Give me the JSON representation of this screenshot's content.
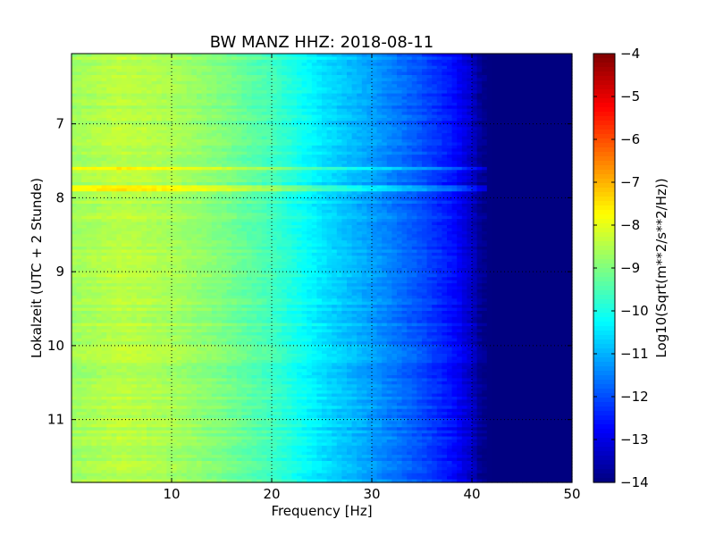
{
  "chart_data": {
    "type": "heatmap",
    "title": "BW MANZ HHZ: 2018-08-11",
    "xlabel": "Frequency [Hz]",
    "ylabel": "Lokalzeit (UTC + 2 Stunde)",
    "colorbar_label": "Log10(Sqrt(m**2/s**2/Hz))",
    "xlim": [
      0,
      50
    ],
    "ylim": [
      11.85,
      6.05
    ],
    "y_inverted": true,
    "clim": [
      -14,
      -4
    ],
    "colormap": "jet",
    "grid": true,
    "x_ticks": [
      10,
      20,
      30,
      40,
      50
    ],
    "x_tick_labels": [
      "10",
      "20",
      "30",
      "40",
      "50"
    ],
    "y_ticks": [
      7,
      8,
      9,
      10,
      11
    ],
    "y_tick_labels": [
      "7",
      "8",
      "9",
      "10",
      "11"
    ],
    "colorbar_ticks": [
      -4,
      -5,
      -6,
      -7,
      -8,
      -9,
      -10,
      -11,
      -12,
      -13,
      -14
    ],
    "colorbar_tick_labels": [
      "−4",
      "−5",
      "−6",
      "−7",
      "−8",
      "−9",
      "−10",
      "−11",
      "−12",
      "−13",
      "−14"
    ],
    "frequency_profile": {
      "frequency_hz": [
        0,
        5,
        10,
        15,
        20,
        25,
        30,
        35,
        38,
        40,
        41,
        42,
        50
      ],
      "log10_psd": [
        -8.7,
        -8.4,
        -8.6,
        -9.0,
        -9.6,
        -10.5,
        -11.2,
        -12.0,
        -12.6,
        -13.3,
        -13.9,
        -14.0,
        -14.0
      ]
    },
    "bright_bands": [
      {
        "time": 7.6,
        "max_frequency_hz": 43
      },
      {
        "time": 7.88,
        "max_frequency_hz": 42
      }
    ]
  }
}
